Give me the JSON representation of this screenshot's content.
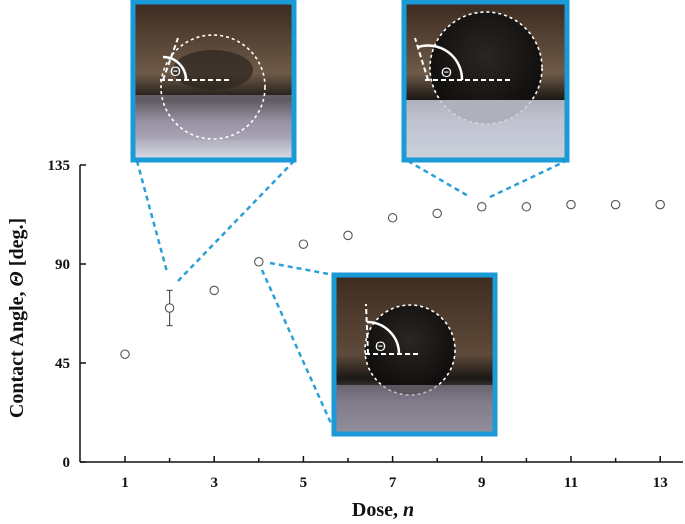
{
  "chart_data": {
    "type": "scatter",
    "title": "",
    "xlabel": "Dose, ",
    "xlabel_var": "n",
    "ylabel": "Contact Angle, ",
    "ylabel_var": "Θ",
    "ylabel_suffix": " [deg.]",
    "xlim": [
      0,
      13.5
    ],
    "ylim": [
      0,
      135
    ],
    "xticks": [
      1,
      3,
      5,
      7,
      9,
      11,
      13
    ],
    "yticks": [
      0,
      45,
      90,
      135
    ],
    "grid": false,
    "legend": "none",
    "points": [
      {
        "x": 1,
        "y": 49,
        "err": 0
      },
      {
        "x": 2,
        "y": 70,
        "err": 8
      },
      {
        "x": 3,
        "y": 78,
        "err": 1
      },
      {
        "x": 4,
        "y": 91,
        "err": 1.5
      },
      {
        "x": 5,
        "y": 99,
        "err": 1.5
      },
      {
        "x": 6,
        "y": 103,
        "err": 1.5
      },
      {
        "x": 7,
        "y": 111,
        "err": 1
      },
      {
        "x": 8,
        "y": 113,
        "err": 1
      },
      {
        "x": 9,
        "y": 116,
        "err": 1.5
      },
      {
        "x": 10,
        "y": 116,
        "err": 1
      },
      {
        "x": 11,
        "y": 117,
        "err": 1.5
      },
      {
        "x": 12,
        "y": 117,
        "err": 1
      },
      {
        "x": 13,
        "y": 117,
        "err": 1.5
      }
    ],
    "insets": [
      {
        "dose": 2,
        "angle_symbol": "Θ"
      },
      {
        "dose": 9,
        "angle_symbol": "Θ"
      },
      {
        "dose": 4,
        "angle_symbol": "Θ"
      }
    ]
  },
  "colors": {
    "inset_border": "#1a9ad6",
    "connector": "#2aa0d8",
    "marker": "#555555",
    "axis": "#111111"
  }
}
